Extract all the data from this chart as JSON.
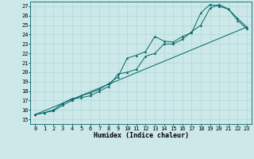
{
  "xlabel": "Humidex (Indice chaleur)",
  "bg_color": "#cce8e8",
  "line_color": "#006666",
  "xlim": [
    -0.5,
    23.5
  ],
  "ylim": [
    14.5,
    27.5
  ],
  "xticks": [
    0,
    1,
    2,
    3,
    4,
    5,
    6,
    7,
    8,
    9,
    10,
    11,
    12,
    13,
    14,
    15,
    16,
    17,
    18,
    19,
    20,
    21,
    22,
    23
  ],
  "yticks": [
    15,
    16,
    17,
    18,
    19,
    20,
    21,
    22,
    23,
    24,
    25,
    26,
    27
  ],
  "line1_x": [
    0,
    1,
    2,
    3,
    4,
    5,
    6,
    7,
    8,
    9,
    10,
    11,
    12,
    13,
    14,
    15,
    16,
    17,
    18,
    19,
    20,
    21,
    22,
    23
  ],
  "line1_y": [
    15.5,
    15.7,
    15.9,
    16.5,
    17.0,
    17.5,
    17.8,
    18.2,
    18.8,
    19.5,
    21.5,
    21.8,
    22.2,
    23.8,
    23.3,
    23.2,
    23.8,
    24.2,
    26.3,
    27.2,
    27.0,
    26.7,
    25.7,
    24.8
  ],
  "line2_x": [
    0,
    1,
    2,
    3,
    4,
    5,
    6,
    7,
    8,
    9,
    10,
    11,
    12,
    13,
    14,
    15,
    16,
    17,
    18,
    19,
    20,
    21,
    22,
    23
  ],
  "line2_y": [
    15.5,
    15.7,
    16.0,
    16.7,
    17.2,
    17.3,
    17.5,
    18.0,
    18.5,
    19.8,
    20.0,
    20.3,
    21.7,
    22.0,
    23.0,
    23.0,
    23.5,
    24.3,
    25.0,
    26.8,
    27.2,
    26.7,
    25.5,
    24.6
  ],
  "line3_x": [
    0,
    23
  ],
  "line3_y": [
    15.5,
    24.8
  ],
  "grid_color": "#aad4d4",
  "xlabel_fontsize": 6.0,
  "tick_fontsize": 5.0,
  "marker_size": 1.8,
  "linewidth": 0.7
}
